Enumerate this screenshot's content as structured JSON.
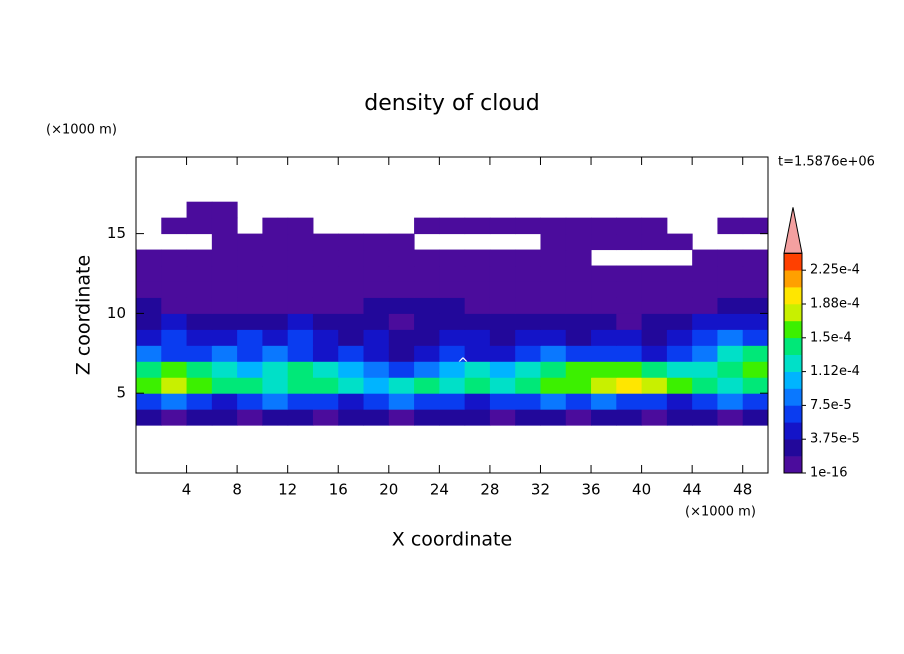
{
  "chart_data": {
    "type": "contour",
    "title": "density of cloud",
    "xlabel": "X coordinate",
    "ylabel": "Z coordinate",
    "xunit": "(×1000 m)",
    "yunit": "(×1000 m)",
    "time_label": "t=1.5876e+06",
    "annotation": "^",
    "xlim": [
      0,
      50
    ],
    "ylim": [
      0,
      19.8
    ],
    "xticks": [
      4,
      8,
      12,
      16,
      20,
      24,
      28,
      32,
      36,
      40,
      44,
      48
    ],
    "yticks": [
      5,
      10,
      15
    ],
    "x": [
      1,
      3,
      5,
      7,
      9,
      11,
      13,
      15,
      17,
      19,
      21,
      23,
      25,
      27,
      29,
      31,
      33,
      35,
      37,
      39,
      41,
      43,
      45,
      47,
      49
    ],
    "y": [
      3.5,
      4.5,
      5.5,
      6.5,
      7.5,
      8.5,
      9.5,
      10.5,
      11.5,
      12.5,
      13.5,
      14.5,
      15.5,
      16.5
    ],
    "z": [
      [
        2.8e-05,
        1e-05,
        2.8e-05,
        2.8e-05,
        1e-05,
        2.8e-05,
        2.8e-05,
        1e-05,
        2.8e-05,
        2.8e-05,
        1e-05,
        2.8e-05,
        2.8e-05,
        2.8e-05,
        1e-05,
        2.8e-05,
        2.8e-05,
        1e-05,
        2.8e-05,
        2.8e-05,
        1e-05,
        2.8e-05,
        2.8e-05,
        1e-05,
        2.8e-05
      ],
      [
        6.5e-05,
        8.5e-05,
        6.5e-05,
        4.5e-05,
        6.5e-05,
        8.5e-05,
        6.5e-05,
        6.5e-05,
        4.5e-05,
        6.5e-05,
        8.5e-05,
        6.5e-05,
        6.5e-05,
        4.5e-05,
        6.5e-05,
        6.5e-05,
        8.5e-05,
        6.5e-05,
        8.5e-05,
        6.5e-05,
        6.5e-05,
        4.5e-05,
        6.5e-05,
        8.5e-05,
        6.5e-05
      ],
      [
        0.00016,
        0.00018,
        0.00016,
        0.00014,
        0.00014,
        0.00012,
        0.00014,
        0.00014,
        0.00012,
        0.0001,
        0.00012,
        0.00014,
        0.00012,
        0.00014,
        0.00012,
        0.00014,
        0.00016,
        0.00016,
        0.00018,
        0.000195,
        0.00018,
        0.00016,
        0.00014,
        0.00012,
        0.00014
      ],
      [
        0.00014,
        0.00016,
        0.00014,
        0.00012,
        0.0001,
        0.00012,
        0.00014,
        0.00012,
        0.0001,
        8.5e-05,
        6.5e-05,
        8.5e-05,
        0.0001,
        0.00012,
        0.0001,
        0.00012,
        0.00014,
        0.00016,
        0.00016,
        0.00016,
        0.00014,
        0.00012,
        0.00012,
        0.00014,
        0.00016
      ],
      [
        8.5e-05,
        6.5e-05,
        6.5e-05,
        8.5e-05,
        6.5e-05,
        8.5e-05,
        6.5e-05,
        4.5e-05,
        6.5e-05,
        4.5e-05,
        2.8e-05,
        4.5e-05,
        6.5e-05,
        4.5e-05,
        4.5e-05,
        6.5e-05,
        8.5e-05,
        6.5e-05,
        6.5e-05,
        6.5e-05,
        4.5e-05,
        6.5e-05,
        8.5e-05,
        0.00012,
        0.00014
      ],
      [
        4.5e-05,
        6.5e-05,
        4.5e-05,
        4.5e-05,
        6.5e-05,
        4.5e-05,
        6.5e-05,
        4.5e-05,
        2.8e-05,
        4.5e-05,
        2.8e-05,
        2.8e-05,
        4.5e-05,
        4.5e-05,
        2.8e-05,
        4.5e-05,
        4.5e-05,
        2.8e-05,
        4.5e-05,
        4.5e-05,
        2.8e-05,
        4.5e-05,
        6.5e-05,
        8.5e-05,
        6.5e-05
      ],
      [
        2.8e-05,
        4.5e-05,
        2.8e-05,
        2.8e-05,
        2.8e-05,
        2.8e-05,
        4.5e-05,
        2.8e-05,
        2.8e-05,
        2.8e-05,
        1e-05,
        2.8e-05,
        2.8e-05,
        2.8e-05,
        2.8e-05,
        2.8e-05,
        2.8e-05,
        2.8e-05,
        2.8e-05,
        1e-05,
        2.8e-05,
        2.8e-05,
        4.5e-05,
        4.5e-05,
        4.5e-05
      ],
      [
        2.8e-05,
        1e-05,
        1e-05,
        1e-05,
        1e-05,
        1e-05,
        1e-05,
        1e-05,
        1e-05,
        2.8e-05,
        2.8e-05,
        2.8e-05,
        2.8e-05,
        1e-05,
        1e-05,
        1e-05,
        1e-05,
        1e-05,
        1e-05,
        1e-05,
        1e-05,
        1e-05,
        1e-05,
        2.8e-05,
        2.8e-05
      ],
      [
        1e-05,
        1e-05,
        1e-05,
        1e-05,
        1e-05,
        1e-05,
        1e-05,
        1e-05,
        1e-05,
        1e-05,
        1e-05,
        1e-05,
        1e-05,
        1e-05,
        1e-05,
        1e-05,
        1e-05,
        1e-05,
        1e-05,
        1e-05,
        1e-05,
        1e-05,
        1e-05,
        1e-05,
        1e-05
      ],
      [
        1e-05,
        1e-05,
        1e-05,
        1e-05,
        1e-05,
        1e-05,
        1e-05,
        1e-05,
        1e-05,
        1e-05,
        1e-05,
        1e-05,
        1e-05,
        1e-05,
        1e-05,
        1e-05,
        1e-05,
        1e-05,
        1e-05,
        1e-05,
        1e-05,
        1e-05,
        1e-05,
        1e-05,
        1e-05
      ],
      [
        1e-05,
        1e-05,
        1e-05,
        1e-05,
        1e-05,
        1e-05,
        1e-05,
        1e-05,
        1e-05,
        1e-05,
        1e-05,
        1e-05,
        1e-05,
        1e-05,
        1e-05,
        1e-05,
        1e-05,
        1e-05,
        null,
        null,
        null,
        null,
        1e-05,
        1e-05,
        1e-05
      ],
      [
        null,
        null,
        null,
        1e-05,
        1e-05,
        1e-05,
        1e-05,
        1e-05,
        1e-05,
        1e-05,
        1e-05,
        null,
        null,
        null,
        null,
        null,
        1e-05,
        1e-05,
        1e-05,
        1e-05,
        1e-05,
        1e-05,
        null,
        null,
        null
      ],
      [
        null,
        1e-05,
        1e-05,
        1e-05,
        null,
        1e-05,
        1e-05,
        null,
        null,
        null,
        null,
        1e-05,
        1e-05,
        1e-05,
        1e-05,
        1e-05,
        1e-05,
        1e-05,
        1e-05,
        1e-05,
        1e-05,
        null,
        null,
        1e-05,
        1e-05
      ],
      [
        null,
        null,
        1e-05,
        1e-05,
        null,
        null,
        null,
        null,
        null,
        null,
        null,
        null,
        null,
        null,
        null,
        null,
        null,
        null,
        null,
        null,
        null,
        null,
        null,
        null,
        null
      ]
    ],
    "colorbar": {
      "lim": [
        1e-16,
        0.00024375
      ],
      "colors": [
        "#4b0c9c",
        "#22089a",
        "#1414c8",
        "#0a3cf0",
        "#0a78ff",
        "#00b4ff",
        "#00e0c8",
        "#00e878",
        "#3cf000",
        "#c8f000",
        "#ffe600",
        "#ffa000",
        "#ff4000"
      ],
      "over_color": "#f4a0a0",
      "ticks": [
        {
          "value": 1e-16,
          "label": "1e-16"
        },
        {
          "value": 3.75e-05,
          "label": "3.75e-5"
        },
        {
          "value": 7.5e-05,
          "label": "7.5e-5"
        },
        {
          "value": 0.0001125,
          "label": "1.12e-4"
        },
        {
          "value": 0.00015,
          "label": "1.5e-4"
        },
        {
          "value": 0.0001875,
          "label": "1.88e-4"
        },
        {
          "value": 0.000225,
          "label": "2.25e-4"
        }
      ]
    }
  }
}
